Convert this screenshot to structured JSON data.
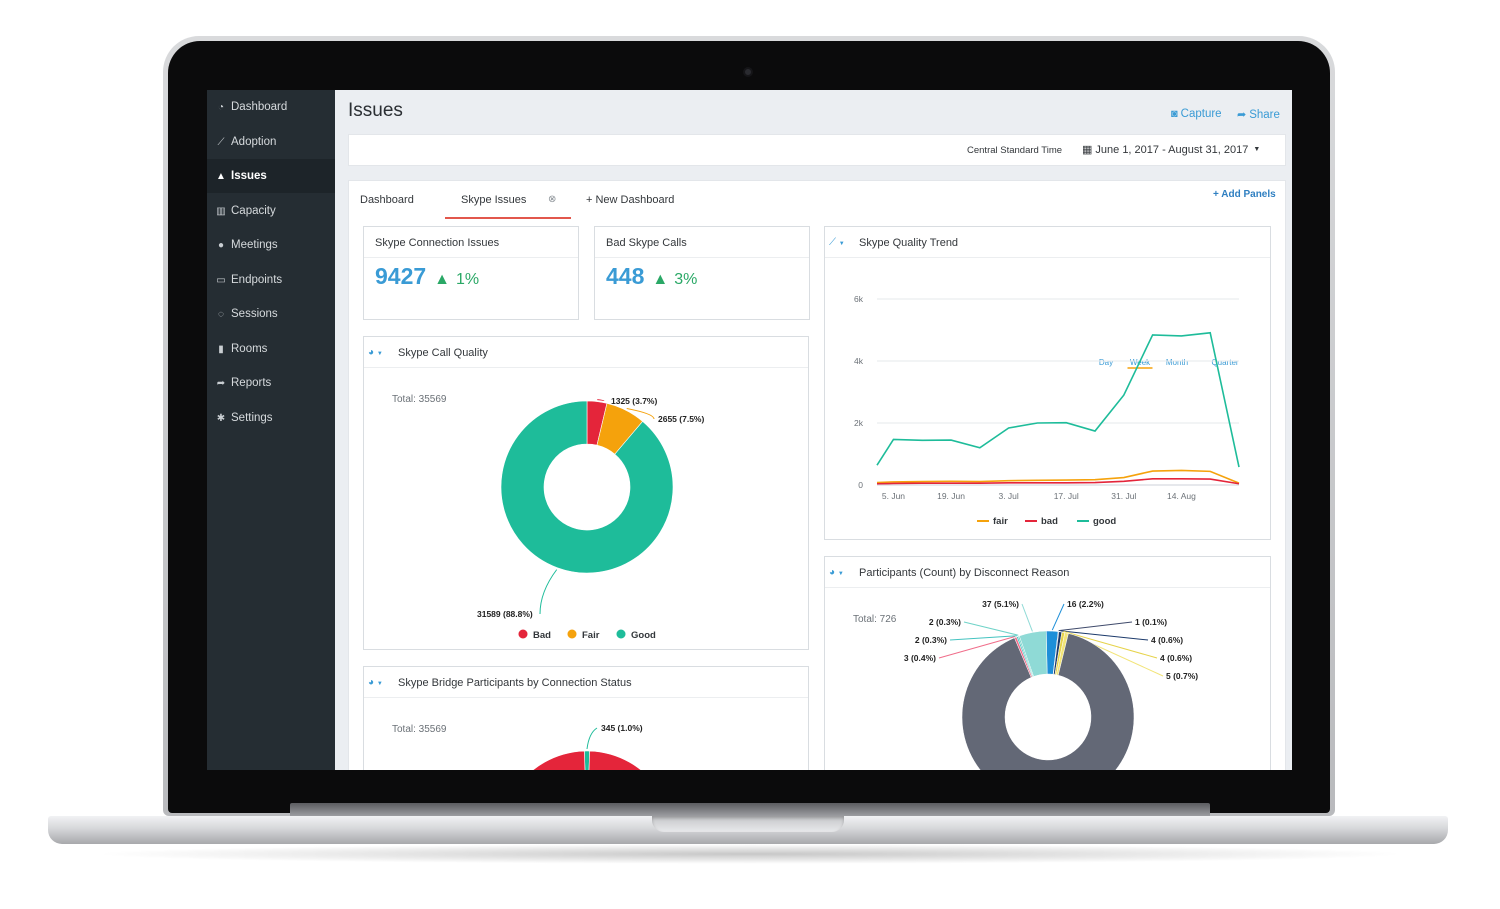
{
  "sidebar": {
    "items": [
      {
        "label": "Dashboard",
        "icon": "dashboard-icon"
      },
      {
        "label": "Adoption",
        "icon": "line-chart-icon"
      },
      {
        "label": "Issues",
        "icon": "warning-icon",
        "active": true
      },
      {
        "label": "Capacity",
        "icon": "bar-chart-icon"
      },
      {
        "label": "Meetings",
        "icon": "users-icon"
      },
      {
        "label": "Endpoints",
        "icon": "monitor-icon"
      },
      {
        "label": "Sessions",
        "icon": "chat-icon"
      },
      {
        "label": "Rooms",
        "icon": "building-icon"
      },
      {
        "label": "Reports",
        "icon": "share-arrow-icon"
      },
      {
        "label": "Settings",
        "icon": "gear-icon"
      }
    ]
  },
  "header": {
    "title": "Issues",
    "capture_label": "Capture",
    "share_label": "Share"
  },
  "datebar": {
    "timezone": "Central Standard Time",
    "range": "June 1, 2017 - August 31, 2017"
  },
  "tabs": [
    {
      "label": "Dashboard"
    },
    {
      "label": "Skype Issues",
      "active": true
    },
    {
      "label": "+ New Dashboard"
    }
  ],
  "add_panels_label": "+ Add Panels",
  "kpis": [
    {
      "title": "Skype Connection Issues",
      "value": "9427",
      "change": "1%"
    },
    {
      "title": "Bad Skype Calls",
      "value": "448",
      "change": "3%"
    }
  ],
  "colors": {
    "accent": "#3a9bd5",
    "positive": "#2aa866",
    "bad": "#e4253a",
    "fair": "#f5a20c",
    "good": "#1ebc9a",
    "disconnect_main": "#636876"
  },
  "chart_data": [
    {
      "id": "skype-call-quality",
      "type": "pie",
      "title": "Skype Call Quality",
      "total_label": "Total: 35569",
      "slices": [
        {
          "name": "Bad",
          "value": 1325,
          "label": "1325 (3.7%)",
          "color": "#e4253a"
        },
        {
          "name": "Fair",
          "value": 2655,
          "label": "2655 (7.5%)",
          "color": "#f5a20c"
        },
        {
          "name": "Good",
          "value": 31589,
          "label": "31589 (88.8%)",
          "color": "#1ebc9a"
        }
      ],
      "legend": [
        "Bad",
        "Fair",
        "Good"
      ]
    },
    {
      "id": "skype-quality-trend",
      "type": "line",
      "title": "Skype Quality Trend",
      "granularity_options": [
        "Day",
        "Week",
        "Month",
        "Quarter"
      ],
      "granularity_selected": "Week",
      "yticks": [
        "0",
        "2k",
        "4k",
        "6k"
      ],
      "ylim": [
        0,
        6000
      ],
      "xticks": [
        "5. Jun",
        "19. Jun",
        "3. Jul",
        "17. Jul",
        "31. Jul",
        "14. Aug"
      ],
      "x": [
        "Jun 1",
        "Jun 5",
        "Jun 12",
        "Jun 19",
        "Jun 26",
        "Jul 3",
        "Jul 10",
        "Jul 17",
        "Jul 24",
        "Jul 31",
        "Aug 7",
        "Aug 14",
        "Aug 21",
        "Aug 28"
      ],
      "series": [
        {
          "name": "fair",
          "color": "#f5a20c",
          "values": [
            80,
            100,
            110,
            120,
            110,
            140,
            150,
            160,
            170,
            240,
            450,
            470,
            440,
            60
          ]
        },
        {
          "name": "bad",
          "color": "#e4253a",
          "values": [
            40,
            50,
            60,
            60,
            60,
            70,
            70,
            70,
            80,
            120,
            200,
            200,
            190,
            40
          ]
        },
        {
          "name": "good",
          "color": "#1ebc9a",
          "values": [
            640,
            1470,
            1440,
            1450,
            1200,
            1840,
            2000,
            2010,
            1740,
            2900,
            4840,
            4810,
            4910,
            580
          ]
        }
      ]
    },
    {
      "id": "skype-bridge-participants",
      "type": "pie",
      "title": "Skype Bridge Participants by Connection Status",
      "total_label": "Total: 35569",
      "visible_labels": [
        "345 (1.0%)"
      ],
      "slices": [
        {
          "name": "",
          "value": 345,
          "label": "345 (1.0%)",
          "color": "#1ebc9a"
        },
        {
          "name": "",
          "value": 35224,
          "label": "",
          "color": "#e4253a"
        }
      ]
    },
    {
      "id": "participants-by-disconnect-reason",
      "type": "pie",
      "title": "Participants (Count) by Disconnect Reason",
      "total_label": "Total: 726",
      "slices": [
        {
          "value": 16,
          "label": "16 (2.2%)",
          "color": "#1e8fd8"
        },
        {
          "value": 1,
          "label": "1 (0.1%)",
          "color": "#3f4a6b"
        },
        {
          "value": 4,
          "label": "4 (0.6%)",
          "color": "#1c3a6b"
        },
        {
          "value": 4,
          "label": "4 (0.6%)",
          "color": "#e6d34a"
        },
        {
          "value": 5,
          "label": "5 (0.7%)",
          "color": "#f2e477"
        },
        {
          "value": 652,
          "label": "",
          "color": "#636876"
        },
        {
          "value": 3,
          "label": "3 (0.4%)",
          "color": "#f06d8a"
        },
        {
          "value": 2,
          "label": "2 (0.3%)",
          "color": "#44c3c0"
        },
        {
          "value": 2,
          "label": "2 (0.3%)",
          "color": "#6fd3c8"
        },
        {
          "value": 37,
          "label": "37 (5.1%)",
          "color": "#8fdad6"
        }
      ]
    }
  ]
}
